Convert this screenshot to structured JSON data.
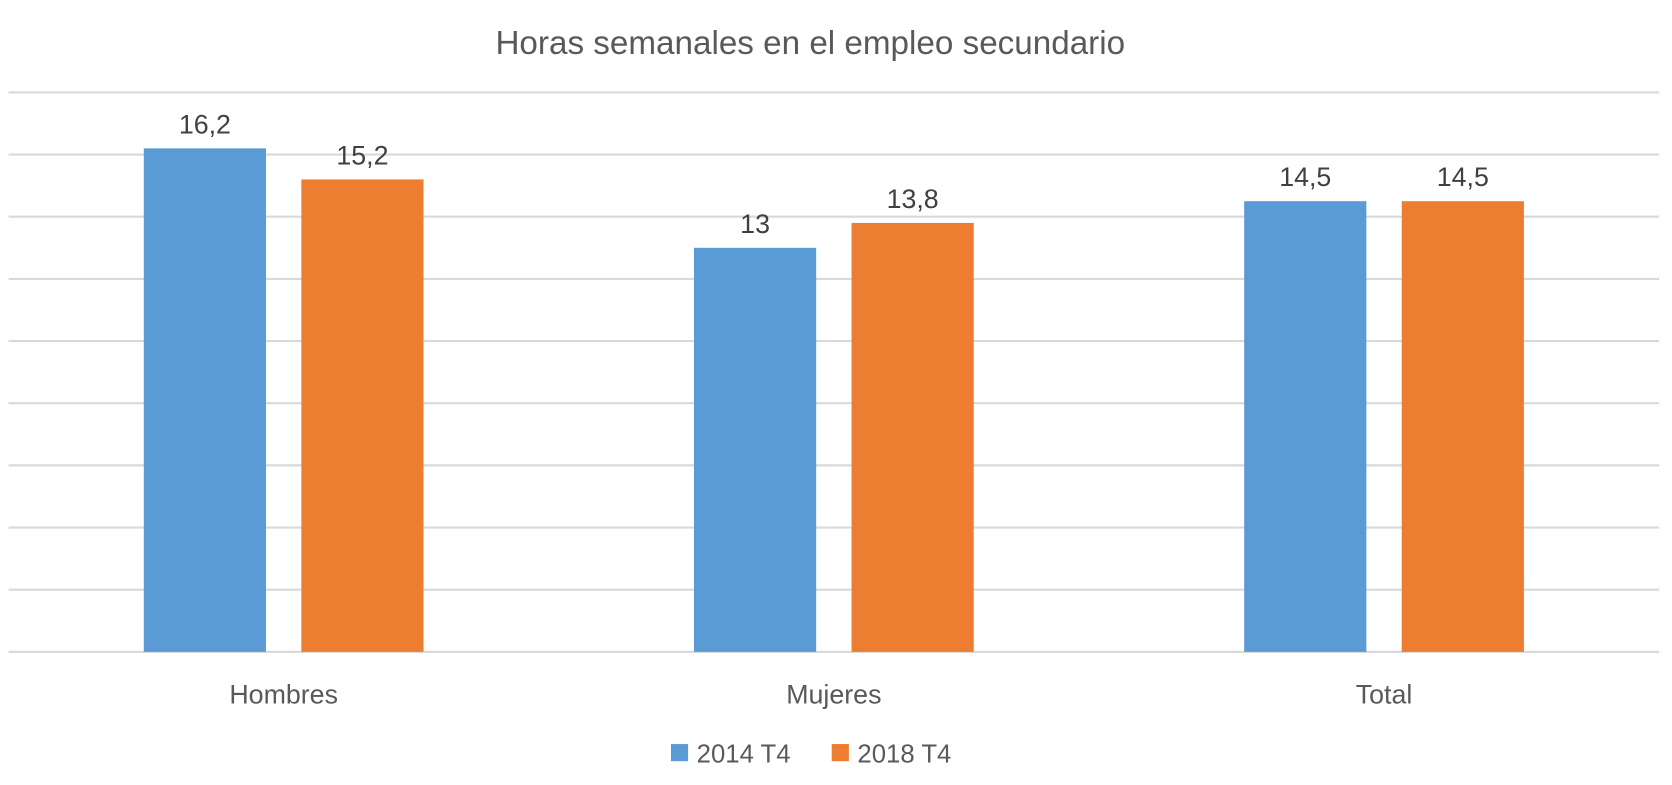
{
  "chart_data": {
    "type": "bar",
    "title": "Horas semanales en el empleo secundario",
    "categories": [
      "Hombres",
      "Mujeres",
      "Total"
    ],
    "series": [
      {
        "name": "2014 T4",
        "values": [
          16.2,
          13,
          14.5
        ],
        "labels": [
          "16,2",
          "13",
          "14,5"
        ],
        "color": "#5B9BD5"
      },
      {
        "name": "2018 T4",
        "values": [
          15.2,
          13.8,
          14.5
        ],
        "labels": [
          "15,2",
          "13,8",
          "14,5"
        ],
        "color": "#ED7D31"
      }
    ],
    "ylim": [
      0,
      18
    ],
    "ytick_step": 2,
    "yaxis_labels_shown": false,
    "grid": true,
    "legend": "bottom"
  }
}
